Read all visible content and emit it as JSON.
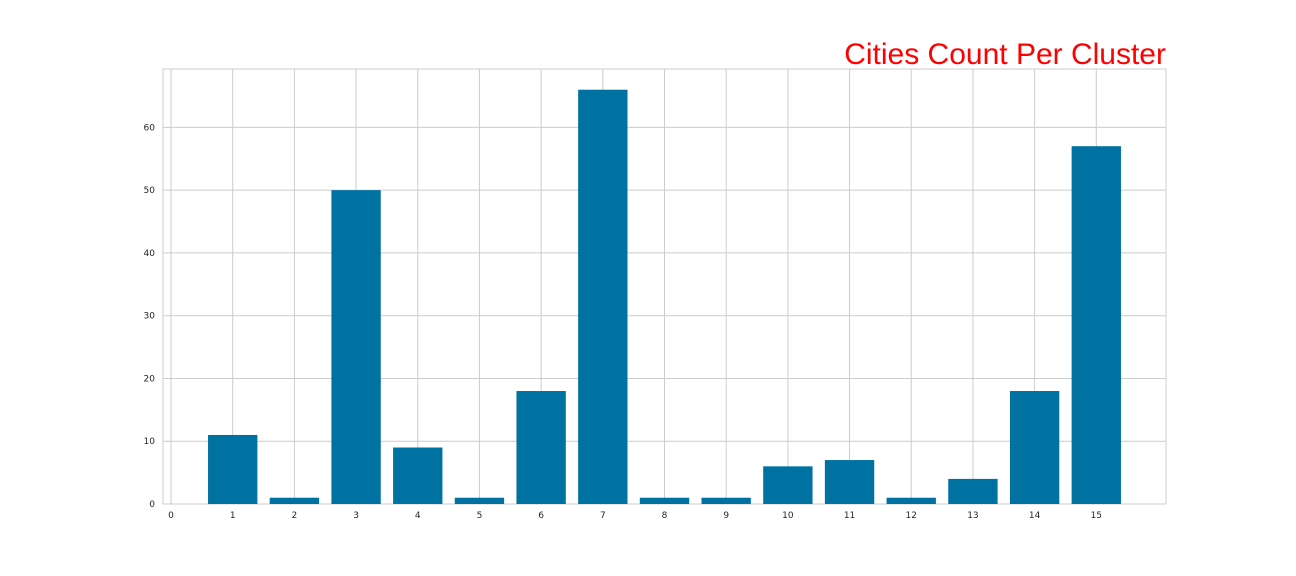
{
  "chart_data": {
    "type": "bar",
    "title": "Cities Count Per Cluster",
    "title_color": "#ff0000",
    "bar_color": "#0072a2",
    "grid": true,
    "xlabel": "",
    "ylabel": "",
    "categories": [
      1,
      2,
      3,
      4,
      5,
      6,
      7,
      8,
      9,
      10,
      11,
      12,
      13,
      14,
      15
    ],
    "values": [
      11,
      1,
      50,
      9,
      1,
      18,
      66,
      1,
      1,
      6,
      7,
      1,
      4,
      18,
      57
    ],
    "xlim": [
      -0.13,
      16.13
    ],
    "ylim": [
      0,
      69.3
    ],
    "xticks": [
      0,
      1,
      2,
      3,
      4,
      5,
      6,
      7,
      8,
      9,
      10,
      11,
      12,
      13,
      14,
      15
    ],
    "yticks": [
      0,
      10,
      20,
      30,
      40,
      50,
      60
    ]
  }
}
